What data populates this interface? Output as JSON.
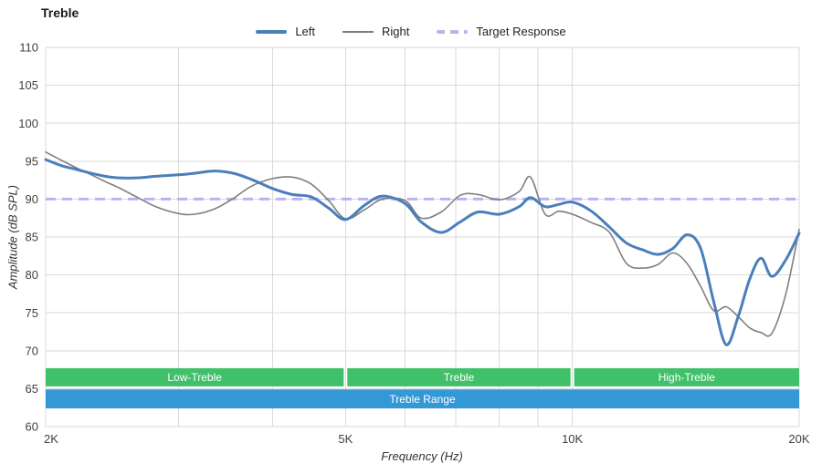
{
  "title": "Treble",
  "legend": [
    {
      "label": "Left",
      "color": "#4a7fbc",
      "style": "solid"
    },
    {
      "label": "Right",
      "color": "#7f7f7f",
      "style": "solid"
    },
    {
      "label": "Target Response",
      "color": "#b9b2f1",
      "style": "dashed"
    }
  ],
  "axes": {
    "x_label": "Frequency (Hz)",
    "y_label": "Amplitude (dB SPL)",
    "x_scale": "log",
    "x_range": [
      2000,
      20000
    ],
    "y_range": [
      60,
      110
    ],
    "x_ticks": [
      {
        "value": 2000,
        "label": "2K"
      },
      {
        "value": 5000,
        "label": "5K"
      },
      {
        "value": 10000,
        "label": "10K"
      },
      {
        "value": 20000,
        "label": "20K"
      }
    ],
    "x_gridlines": [
      2000,
      3000,
      4000,
      5000,
      6000,
      7000,
      8000,
      9000,
      10000,
      20000
    ],
    "y_ticks": [
      60,
      65,
      70,
      75,
      80,
      85,
      90,
      95,
      100,
      105,
      110
    ],
    "grid": true,
    "gridline_color": "#dadada",
    "tick_label_color": "#404040"
  },
  "chart_data": {
    "type": "line",
    "title": "Treble",
    "xlabel": "Frequency (Hz)",
    "ylabel": "Amplitude (dB SPL)",
    "legend_position": "top-center",
    "x": [
      2000,
      2100,
      2200,
      2300,
      2400,
      2500,
      2650,
      2800,
      3000,
      3150,
      3350,
      3550,
      3750,
      4000,
      4250,
      4500,
      4750,
      5000,
      5300,
      5600,
      6000,
      6300,
      6700,
      7100,
      7500,
      8000,
      8500,
      8800,
      9200,
      9600,
      10000,
      10600,
      11200,
      11800,
      12400,
      13000,
      13600,
      14200,
      14800,
      15400,
      16000,
      16600,
      17200,
      17800,
      18400,
      19200,
      20000
    ],
    "series": [
      {
        "name": "Left",
        "color": "#4a7fbc",
        "width": 3,
        "values": [
          95.2,
          94.4,
          93.9,
          93.4,
          93.0,
          92.8,
          92.8,
          93.0,
          93.2,
          93.4,
          93.7,
          93.4,
          92.6,
          91.4,
          90.6,
          90.3,
          88.8,
          87.3,
          89.2,
          90.4,
          89.4,
          87.0,
          85.6,
          87.0,
          88.3,
          88.0,
          89.0,
          90.2,
          89.0,
          89.3,
          89.6,
          88.4,
          86.3,
          84.2,
          83.3,
          82.7,
          83.5,
          85.3,
          83.5,
          76.5,
          70.8,
          74.5,
          79.5,
          82.2,
          79.8,
          82.0,
          85.5
        ]
      },
      {
        "name": "Right",
        "color": "#7f7f7f",
        "width": 1.6,
        "values": [
          96.2,
          95.1,
          94.1,
          93.2,
          92.3,
          91.5,
          90.2,
          89.0,
          88.1,
          88.0,
          88.7,
          90.1,
          91.7,
          92.7,
          92.9,
          92.0,
          89.8,
          87.4,
          88.6,
          90.0,
          89.8,
          87.5,
          88.3,
          90.5,
          90.6,
          89.9,
          91.0,
          92.9,
          88.0,
          88.4,
          88.0,
          86.9,
          85.6,
          81.5,
          80.9,
          81.4,
          82.9,
          81.5,
          78.5,
          75.3,
          75.8,
          74.5,
          73.0,
          72.4,
          72.3,
          77.5,
          86.0
        ]
      }
    ],
    "target_response": {
      "label": "Target Response",
      "value": 90,
      "color": "#b9b2f1",
      "style": "dashed"
    },
    "bands": [
      {
        "label": "Low-Treble",
        "from": 2000,
        "to": 5000,
        "row": "top",
        "color": "#41c06a"
      },
      {
        "label": "Treble",
        "from": 5000,
        "to": 10000,
        "row": "top",
        "color": "#41c06a"
      },
      {
        "label": "High-Treble",
        "from": 10000,
        "to": 20000,
        "row": "top",
        "color": "#41c06a"
      },
      {
        "label": "Treble Range",
        "from": 2000,
        "to": 20000,
        "row": "bottom",
        "color": "#3498d7"
      }
    ]
  }
}
